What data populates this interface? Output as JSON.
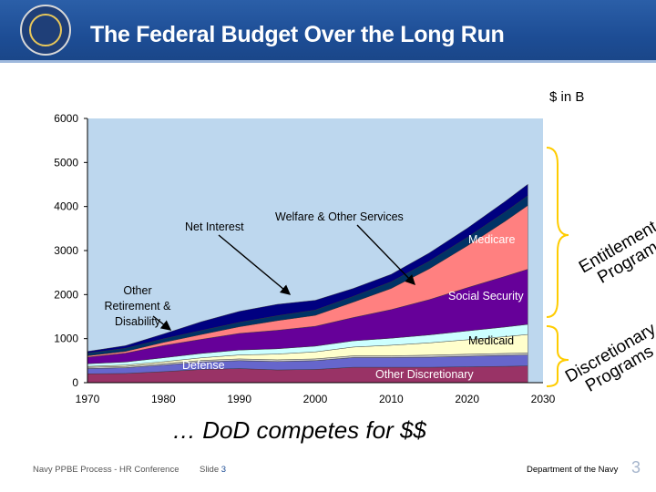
{
  "header": {
    "title": "The Federal Budget Over the Long Run",
    "logo": "navy-seal"
  },
  "unit_label": "$ in B",
  "subtitle": "… DoD competes for $$",
  "footer": {
    "left": "Navy PPBE Process -  HR Conference",
    "slide_prefix": "Slide",
    "slide_number": "3",
    "right": "Department of the Navy",
    "page_number": "3"
  },
  "braces": {
    "entitlement": [
      "Entitlement",
      "Programs"
    ],
    "discretionary": [
      "Discretionary",
      "Programs"
    ]
  },
  "chart_data": {
    "type": "area",
    "stacked": true,
    "title": "The Federal Budget Over the Long Run",
    "ylabel": "$ in B",
    "xlabel": "",
    "ylim": [
      0,
      6000
    ],
    "xlim": [
      1970,
      2030
    ],
    "x_ticks": [
      "1970",
      "1980",
      "1990",
      "2000",
      "2010",
      "2020",
      "2030"
    ],
    "y_ticks": [
      "0",
      "1000",
      "2000",
      "3000",
      "4000",
      "5000",
      "6000"
    ],
    "grid": false,
    "background_color": "#bdd7ee",
    "x": [
      1970,
      1975,
      1980,
      1985,
      1990,
      1995,
      2000,
      2005,
      2010,
      2015,
      2020,
      2025,
      2028
    ],
    "series": [
      {
        "name": "Defense",
        "color": "#993366",
        "values": [
          200,
          210,
          250,
          300,
          320,
          290,
          300,
          350,
          350,
          350,
          360,
          370,
          380
        ]
      },
      {
        "name": "Other Discretionary",
        "color": "#6666cc",
        "values": [
          120,
          130,
          150,
          170,
          180,
          190,
          200,
          220,
          220,
          230,
          240,
          250,
          250
        ]
      },
      {
        "name": "",
        "color": "#cccccc",
        "values": [
          30,
          30,
          35,
          35,
          40,
          40,
          40,
          40,
          40,
          45,
          45,
          45,
          45
        ]
      },
      {
        "name": "Medicaid",
        "color": "#ffffcc",
        "values": [
          20,
          30,
          40,
          60,
          90,
          130,
          160,
          200,
          240,
          280,
          330,
          380,
          420
        ]
      },
      {
        "name": "Other Retirement & Disability",
        "color": "#ccffff",
        "values": [
          60,
          70,
          90,
          100,
          110,
          120,
          130,
          140,
          160,
          180,
          200,
          220,
          230
        ]
      },
      {
        "name": "Social Security",
        "color": "#660099",
        "values": [
          150,
          200,
          280,
          320,
          380,
          420,
          450,
          530,
          650,
          800,
          980,
          1150,
          1250
        ]
      },
      {
        "name": "Medicare",
        "color": "#ff8080",
        "values": [
          30,
          40,
          70,
          110,
          150,
          220,
          250,
          350,
          480,
          700,
          950,
          1250,
          1450
        ]
      },
      {
        "name": "Welfare & Other Services",
        "color": "#003366",
        "values": [
          60,
          70,
          80,
          90,
          100,
          110,
          120,
          130,
          150,
          170,
          190,
          210,
          220
        ]
      },
      {
        "name": "Net Interest",
        "color": "#000080",
        "values": [
          40,
          60,
          110,
          200,
          250,
          260,
          220,
          180,
          170,
          190,
          210,
          240,
          260
        ]
      }
    ],
    "annotations": [
      "Net Interest",
      "Welfare & Other Services",
      "Medicare",
      "Other Retirement & Disability",
      "Social Security",
      "Medicaid",
      "Defense",
      "Other Discretionary"
    ]
  }
}
